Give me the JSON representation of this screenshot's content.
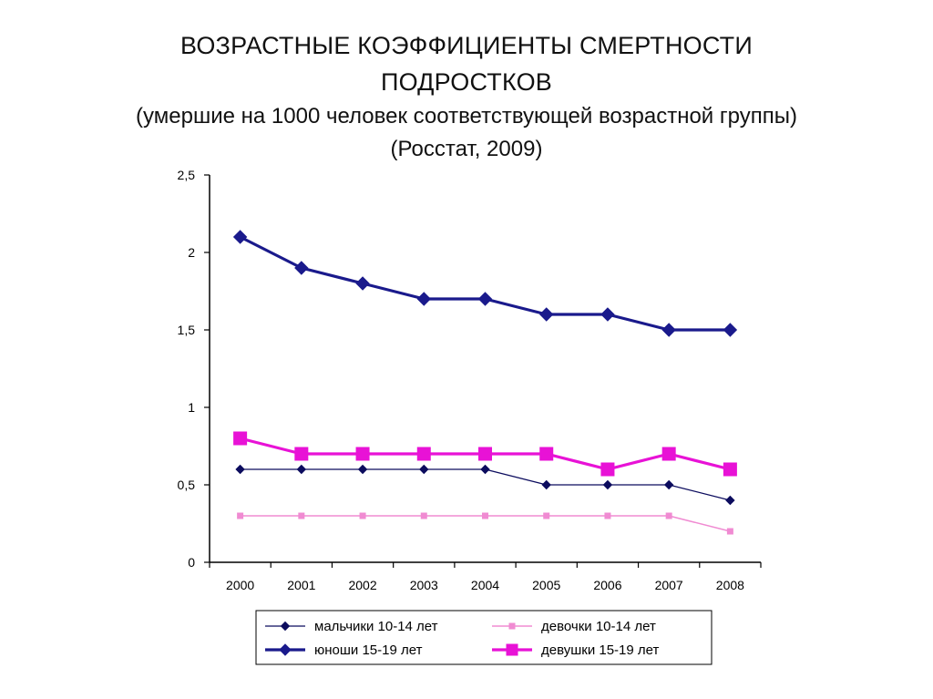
{
  "header": {
    "title_line1": "ВОЗРАСТНЫЕ КОЭФФИЦИЕНТЫ СМЕРТНОСТИ",
    "title_line2": "ПОДРОСТКОВ",
    "subtitle_line1": "(умершие на 1000 человек соответствующей возрастной группы)",
    "subtitle_line2": "(Росстат, 2009)"
  },
  "chart_data": {
    "type": "line",
    "title": "ВОЗРАСТНЫЕ КОЭФФИЦИЕНТЫ СМЕРТНОСТИ ПОДРОСТКОВ",
    "subtitle": "(умершие на 1000 человек соответствующей возрастной группы) (Росстат, 2009)",
    "xlabel": "",
    "ylabel": "",
    "categories": [
      "2000",
      "2001",
      "2002",
      "2003",
      "2004",
      "2005",
      "2006",
      "2007",
      "2008"
    ],
    "yticks": [
      "0",
      "0,5",
      "1",
      "1,5",
      "2",
      "2,5"
    ],
    "ylim": [
      0,
      2.5
    ],
    "grid": false,
    "legend_position": "bottom",
    "series": [
      {
        "name": "мальчики 10-14 лет",
        "color": "#0c0c5e",
        "values": [
          0.6,
          0.6,
          0.6,
          0.6,
          0.6,
          0.5,
          0.5,
          0.5,
          0.4
        ]
      },
      {
        "name": "девочки 10-14 лет",
        "color": "#f08bd2",
        "values": [
          0.3,
          0.3,
          0.3,
          0.3,
          0.3,
          0.3,
          0.3,
          0.3,
          0.2
        ]
      },
      {
        "name": "юноши 15-19 лет",
        "color": "#1a1a8c",
        "values": [
          2.1,
          1.9,
          1.8,
          1.7,
          1.7,
          1.6,
          1.6,
          1.5,
          1.5
        ]
      },
      {
        "name": "девушки 15-19 лет",
        "color": "#e812d6",
        "values": [
          0.8,
          0.7,
          0.7,
          0.7,
          0.7,
          0.7,
          0.6,
          0.7,
          0.6
        ]
      }
    ]
  }
}
